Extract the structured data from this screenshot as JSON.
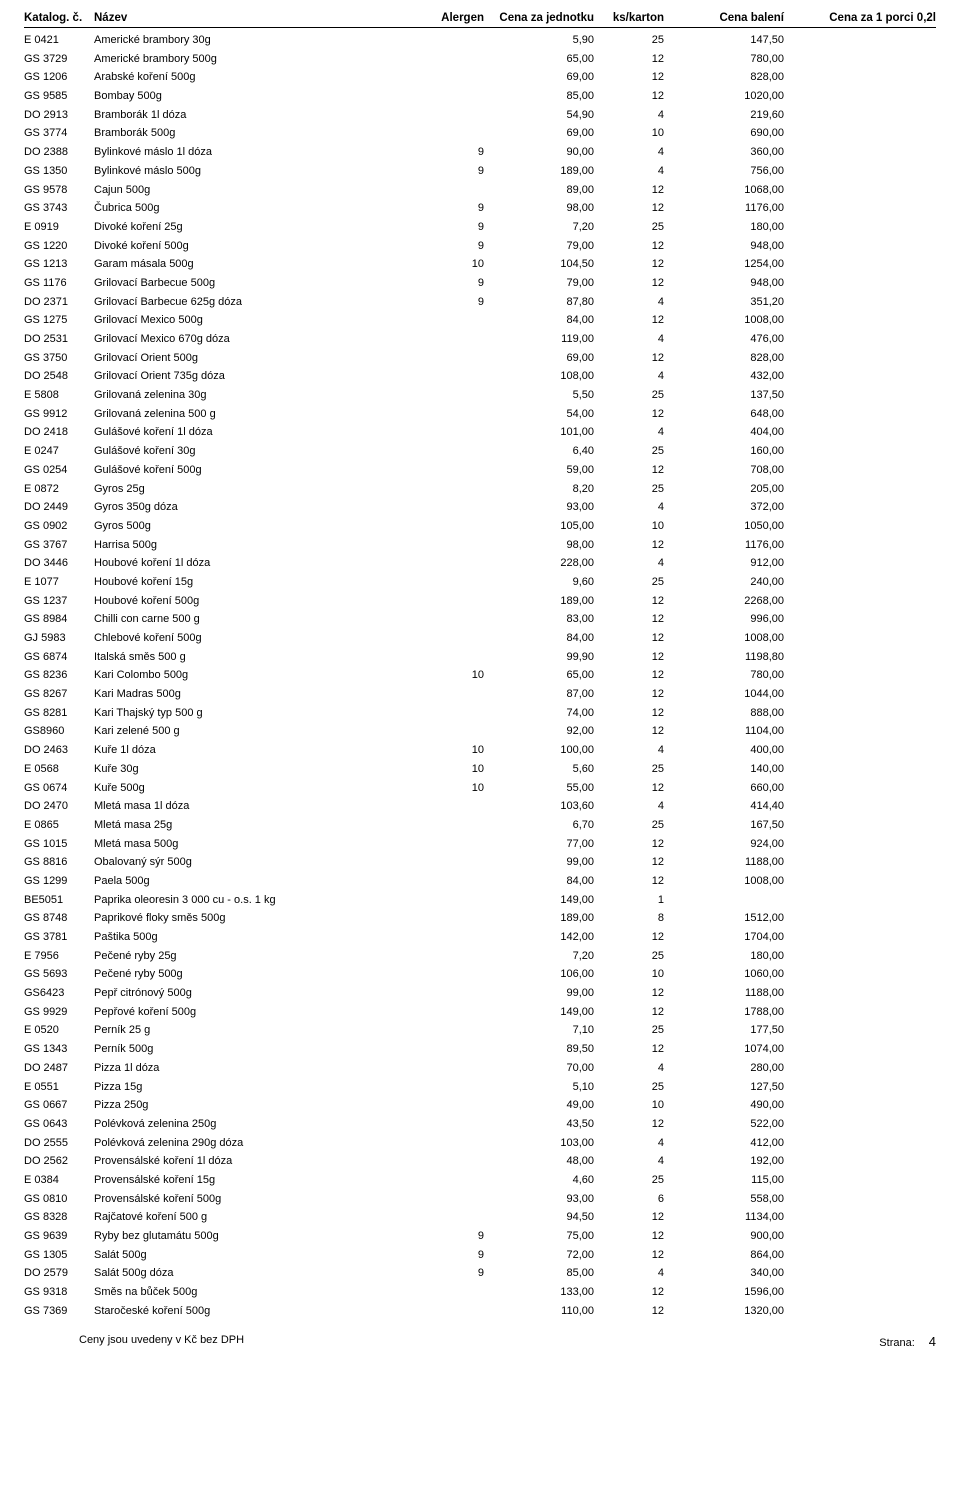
{
  "headers": {
    "code": "Katalog. č.",
    "name": "Název",
    "alergen": "Alergen",
    "unit_price": "Cena za jednotku",
    "per_box": "ks/karton",
    "pack_price": "Cena balení",
    "portion_price": "Cena za 1 porci 0,2l"
  },
  "rows": [
    {
      "code": "E 0421",
      "name": "Americké brambory 30g",
      "alergen": "",
      "price": "5,90",
      "ks": "25",
      "pack": "147,50"
    },
    {
      "code": "GS 3729",
      "name": "Americké brambory 500g",
      "alergen": "",
      "price": "65,00",
      "ks": "12",
      "pack": "780,00"
    },
    {
      "code": "GS 1206",
      "name": "Arabské koření 500g",
      "alergen": "",
      "price": "69,00",
      "ks": "12",
      "pack": "828,00"
    },
    {
      "code": "GS 9585",
      "name": "Bombay 500g",
      "alergen": "",
      "price": "85,00",
      "ks": "12",
      "pack": "1020,00"
    },
    {
      "code": "DO 2913",
      "name": "Bramborák 1l dóza",
      "alergen": "",
      "price": "54,90",
      "ks": "4",
      "pack": "219,60"
    },
    {
      "code": "GS 3774",
      "name": "Bramborák 500g",
      "alergen": "",
      "price": "69,00",
      "ks": "10",
      "pack": "690,00"
    },
    {
      "code": "DO 2388",
      "name": "Bylinkové máslo 1l dóza",
      "alergen": "9",
      "price": "90,00",
      "ks": "4",
      "pack": "360,00"
    },
    {
      "code": "GS 1350",
      "name": "Bylinkové máslo 500g",
      "alergen": "9",
      "price": "189,00",
      "ks": "4",
      "pack": "756,00"
    },
    {
      "code": "GS 9578",
      "name": "Cajun 500g",
      "alergen": "",
      "price": "89,00",
      "ks": "12",
      "pack": "1068,00"
    },
    {
      "code": "GS 3743",
      "name": "Čubrica 500g",
      "alergen": "9",
      "price": "98,00",
      "ks": "12",
      "pack": "1176,00"
    },
    {
      "code": "E 0919",
      "name": "Divoké koření 25g",
      "alergen": "9",
      "price": "7,20",
      "ks": "25",
      "pack": "180,00"
    },
    {
      "code": "GS 1220",
      "name": "Divoké koření 500g",
      "alergen": "9",
      "price": "79,00",
      "ks": "12",
      "pack": "948,00"
    },
    {
      "code": "GS 1213",
      "name": "Garam másala  500g",
      "alergen": "10",
      "price": "104,50",
      "ks": "12",
      "pack": "1254,00"
    },
    {
      "code": "GS 1176",
      "name": "Grilovací Barbecue 500g",
      "alergen": "9",
      "price": "79,00",
      "ks": "12",
      "pack": "948,00"
    },
    {
      "code": "DO 2371",
      "name": "Grilovací Barbecue 625g dóza",
      "alergen": "9",
      "price": "87,80",
      "ks": "4",
      "pack": "351,20"
    },
    {
      "code": "GS 1275",
      "name": "Grilovací Mexico 500g",
      "alergen": "",
      "price": "84,00",
      "ks": "12",
      "pack": "1008,00"
    },
    {
      "code": "DO 2531",
      "name": "Grilovací Mexico 670g dóza",
      "alergen": "",
      "price": "119,00",
      "ks": "4",
      "pack": "476,00"
    },
    {
      "code": "GS 3750",
      "name": "Grilovací Orient 500g",
      "alergen": "",
      "price": "69,00",
      "ks": "12",
      "pack": "828,00"
    },
    {
      "code": "DO 2548",
      "name": "Grilovací Orient 735g dóza",
      "alergen": "",
      "price": "108,00",
      "ks": "4",
      "pack": "432,00"
    },
    {
      "code": "E 5808",
      "name": "Grilovaná zelenina 30g",
      "alergen": "",
      "price": "5,50",
      "ks": "25",
      "pack": "137,50"
    },
    {
      "code": "GS 9912",
      "name": "Grilovaná zelenina 500 g",
      "alergen": "",
      "price": "54,00",
      "ks": "12",
      "pack": "648,00"
    },
    {
      "code": "DO 2418",
      "name": "Gulášové koření 1l dóza",
      "alergen": "",
      "price": "101,00",
      "ks": "4",
      "pack": "404,00"
    },
    {
      "code": "E 0247",
      "name": "Gulášové koření 30g",
      "alergen": "",
      "price": "6,40",
      "ks": "25",
      "pack": "160,00"
    },
    {
      "code": "GS 0254",
      "name": "Gulášové koření 500g",
      "alergen": "",
      "price": "59,00",
      "ks": "12",
      "pack": "708,00"
    },
    {
      "code": "E 0872",
      "name": "Gyros 25g",
      "alergen": "",
      "price": "8,20",
      "ks": "25",
      "pack": "205,00"
    },
    {
      "code": "DO 2449",
      "name": "Gyros 350g dóza",
      "alergen": "",
      "price": "93,00",
      "ks": "4",
      "pack": "372,00"
    },
    {
      "code": "GS 0902",
      "name": "Gyros 500g",
      "alergen": "",
      "price": "105,00",
      "ks": "10",
      "pack": "1050,00"
    },
    {
      "code": "GS 3767",
      "name": "Harrisa 500g",
      "alergen": "",
      "price": "98,00",
      "ks": "12",
      "pack": "1176,00"
    },
    {
      "code": "DO 3446",
      "name": "Houbové koření 1l dóza",
      "alergen": "",
      "price": "228,00",
      "ks": "4",
      "pack": "912,00"
    },
    {
      "code": "E 1077",
      "name": "Houbové koření 15g",
      "alergen": "",
      "price": "9,60",
      "ks": "25",
      "pack": "240,00"
    },
    {
      "code": "GS 1237",
      "name": "Houbové koření 500g",
      "alergen": "",
      "price": "189,00",
      "ks": "12",
      "pack": "2268,00"
    },
    {
      "code": "GS 8984",
      "name": "Chilli con carne 500 g",
      "alergen": "",
      "price": "83,00",
      "ks": "12",
      "pack": "996,00"
    },
    {
      "code": "GJ 5983",
      "name": "Chlebové koření 500g",
      "alergen": "",
      "price": "84,00",
      "ks": "12",
      "pack": "1008,00"
    },
    {
      "code": "GS 6874",
      "name": "Italská směs 500 g",
      "alergen": "",
      "price": "99,90",
      "ks": "12",
      "pack": "1198,80"
    },
    {
      "code": "GS 8236",
      "name": "Kari Colombo 500g",
      "alergen": "10",
      "price": "65,00",
      "ks": "12",
      "pack": "780,00"
    },
    {
      "code": "GS 8267",
      "name": "Kari Madras 500g",
      "alergen": "",
      "price": "87,00",
      "ks": "12",
      "pack": "1044,00"
    },
    {
      "code": "GS 8281",
      "name": "Kari Thajský typ 500 g",
      "alergen": "",
      "price": "74,00",
      "ks": "12",
      "pack": "888,00"
    },
    {
      "code": "GS8960",
      "name": "Kari zelené 500 g",
      "alergen": "",
      "price": "92,00",
      "ks": "12",
      "pack": "1104,00"
    },
    {
      "code": "DO 2463",
      "name": "Kuře 1l dóza",
      "alergen": "10",
      "price": "100,00",
      "ks": "4",
      "pack": "400,00"
    },
    {
      "code": "E 0568",
      "name": "Kuře 30g",
      "alergen": "10",
      "price": "5,60",
      "ks": "25",
      "pack": "140,00"
    },
    {
      "code": "GS 0674",
      "name": "Kuře 500g",
      "alergen": "10",
      "price": "55,00",
      "ks": "12",
      "pack": "660,00"
    },
    {
      "code": "DO 2470",
      "name": "Mletá masa 1l dóza",
      "alergen": "",
      "price": "103,60",
      "ks": "4",
      "pack": "414,40"
    },
    {
      "code": "E 0865",
      "name": "Mletá masa 25g",
      "alergen": "",
      "price": "6,70",
      "ks": "25",
      "pack": "167,50"
    },
    {
      "code": "GS 1015",
      "name": "Mletá masa 500g",
      "alergen": "",
      "price": "77,00",
      "ks": "12",
      "pack": "924,00"
    },
    {
      "code": "GS 8816",
      "name": "Obalovaný sýr 500g",
      "alergen": "",
      "price": "99,00",
      "ks": "12",
      "pack": "1188,00"
    },
    {
      "code": "GS 1299",
      "name": "Paela 500g",
      "alergen": "",
      "price": "84,00",
      "ks": "12",
      "pack": "1008,00"
    },
    {
      "code": "BE5051",
      "name": "Paprika oleoresin 3 000 cu - o.s. 1 kg",
      "alergen": "",
      "price": "149,00",
      "ks": "1",
      "pack": ""
    },
    {
      "code": "GS 8748",
      "name": "Paprikové floky směs  500g",
      "alergen": "",
      "price": "189,00",
      "ks": "8",
      "pack": "1512,00"
    },
    {
      "code": "GS 3781",
      "name": "Paštika 500g",
      "alergen": "",
      "price": "142,00",
      "ks": "12",
      "pack": "1704,00"
    },
    {
      "code": "E 7956",
      "name": "Pečené ryby 25g",
      "alergen": "",
      "price": "7,20",
      "ks": "25",
      "pack": "180,00"
    },
    {
      "code": "GS 5693",
      "name": "Pečené ryby 500g",
      "alergen": "",
      "price": "106,00",
      "ks": "10",
      "pack": "1060,00"
    },
    {
      "code": "GS6423",
      "name": "Pepř citrónový 500g",
      "alergen": "",
      "price": "99,00",
      "ks": "12",
      "pack": "1188,00"
    },
    {
      "code": "GS 9929",
      "name": "Pepřové koření 500g",
      "alergen": "",
      "price": "149,00",
      "ks": "12",
      "pack": "1788,00"
    },
    {
      "code": "E 0520",
      "name": "Perník 25 g",
      "alergen": "",
      "price": "7,10",
      "ks": "25",
      "pack": "177,50"
    },
    {
      "code": "GS 1343",
      "name": "Perník 500g",
      "alergen": "",
      "price": "89,50",
      "ks": "12",
      "pack": "1074,00"
    },
    {
      "code": "DO 2487",
      "name": "Pizza 1l dóza",
      "alergen": "",
      "price": "70,00",
      "ks": "4",
      "pack": "280,00"
    },
    {
      "code": "E 0551",
      "name": "Pizza 15g",
      "alergen": "",
      "price": "5,10",
      "ks": "25",
      "pack": "127,50"
    },
    {
      "code": "GS 0667",
      "name": "Pizza 250g",
      "alergen": "",
      "price": "49,00",
      "ks": "10",
      "pack": "490,00"
    },
    {
      "code": "GS 0643",
      "name": "Polévková zelenina 250g",
      "alergen": "",
      "price": "43,50",
      "ks": "12",
      "pack": "522,00"
    },
    {
      "code": "DO 2555",
      "name": "Polévková zelenina 290g dóza",
      "alergen": "",
      "price": "103,00",
      "ks": "4",
      "pack": "412,00"
    },
    {
      "code": "DO 2562",
      "name": "Provensálské koření 1l dóza",
      "alergen": "",
      "price": "48,00",
      "ks": "4",
      "pack": "192,00"
    },
    {
      "code": "E 0384",
      "name": "Provensálské koření 15g",
      "alergen": "",
      "price": "4,60",
      "ks": "25",
      "pack": "115,00"
    },
    {
      "code": "GS 0810",
      "name": "Provensálské koření 500g",
      "alergen": "",
      "price": "93,00",
      "ks": "6",
      "pack": "558,00"
    },
    {
      "code": "GS 8328",
      "name": "Rajčatové koření 500 g",
      "alergen": "",
      "price": "94,50",
      "ks": "12",
      "pack": "1134,00"
    },
    {
      "code": "GS 9639",
      "name": "Ryby bez glutamátu 500g",
      "alergen": "9",
      "price": "75,00",
      "ks": "12",
      "pack": "900,00"
    },
    {
      "code": "GS 1305",
      "name": "Salát 500g",
      "alergen": "9",
      "price": "72,00",
      "ks": "12",
      "pack": "864,00"
    },
    {
      "code": "DO 2579",
      "name": "Salát 500g dóza",
      "alergen": "9",
      "price": "85,00",
      "ks": "4",
      "pack": "340,00"
    },
    {
      "code": "GS 9318",
      "name": "Směs na bůček 500g",
      "alergen": "",
      "price": "133,00",
      "ks": "12",
      "pack": "1596,00"
    },
    {
      "code": "GS 7369",
      "name": "Staročeské koření 500g",
      "alergen": "",
      "price": "110,00",
      "ks": "12",
      "pack": "1320,00"
    }
  ],
  "footer": {
    "note": "Ceny jsou uvedeny v Kč bez DPH",
    "page_label": "Strana:",
    "page_no": "4"
  }
}
